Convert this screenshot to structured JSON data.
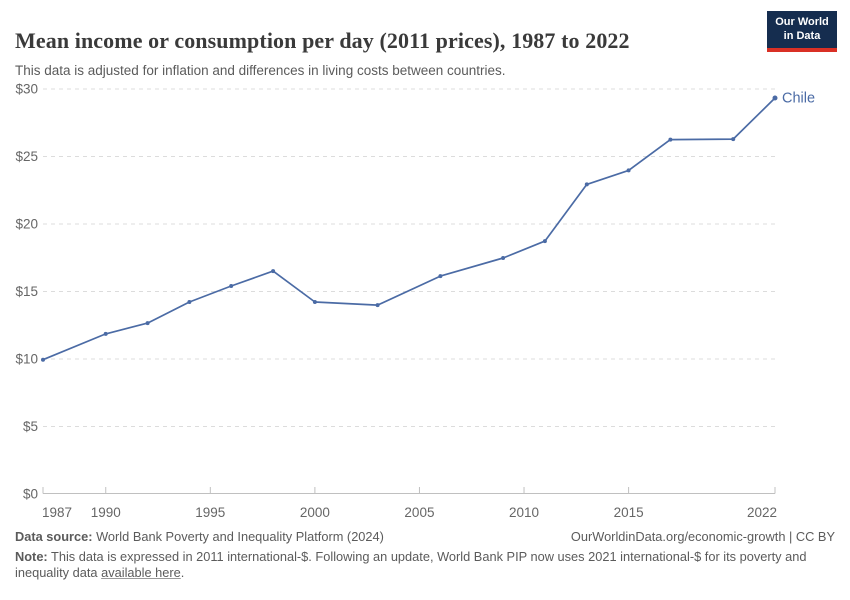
{
  "header": {
    "title": "Mean income or consumption per day (2011 prices), 1987 to 2022",
    "subtitle": "This data is adjusted for inflation and differences in living costs between countries.",
    "logo": {
      "line1": "Our World",
      "line2": "in Data"
    }
  },
  "chart_data": {
    "type": "line",
    "title": "Mean income or consumption per day (2011 prices), 1987 to 2022",
    "entity_label": "Chile",
    "x": [
      1987,
      1990,
      1992,
      1994,
      1996,
      1998,
      2000,
      2003,
      2006,
      2009,
      2011,
      2013,
      2015,
      2017,
      2020,
      2022
    ],
    "series": [
      {
        "name": "Chile",
        "values": [
          9.95,
          11.86,
          12.66,
          14.22,
          15.41,
          16.51,
          14.22,
          13.99,
          16.14,
          17.48,
          18.73,
          22.93,
          23.97,
          26.25,
          26.29,
          29.33
        ]
      }
    ],
    "xlim": [
      1987,
      2022
    ],
    "ylim": [
      0,
      30
    ],
    "xticks": [
      {
        "v": 1987,
        "label": "1987"
      },
      {
        "v": 1990,
        "label": "1990"
      },
      {
        "v": 1995,
        "label": "1995"
      },
      {
        "v": 2000,
        "label": "2000"
      },
      {
        "v": 2005,
        "label": "2005"
      },
      {
        "v": 2010,
        "label": "2010"
      },
      {
        "v": 2015,
        "label": "2015"
      },
      {
        "v": 2022,
        "label": "2022"
      }
    ],
    "yticks": [
      {
        "v": 0,
        "label": "$0"
      },
      {
        "v": 5,
        "label": "$5"
      },
      {
        "v": 10,
        "label": "$10"
      },
      {
        "v": 15,
        "label": "$15"
      },
      {
        "v": 20,
        "label": "$20"
      },
      {
        "v": 25,
        "label": "$25"
      },
      {
        "v": 30,
        "label": "$30"
      }
    ],
    "grid": "horizontal-dashed",
    "legend_position": "end-of-line",
    "colors": {
      "line": "#4b6ba5",
      "tick_label": "#666666",
      "gridline": "#dcdcdc",
      "axis": "#c0c0c0"
    }
  },
  "footer": {
    "datasource_label": "Data source:",
    "datasource_text": " World Bank Poverty and Inequality Platform (2024)",
    "attribution": "OurWorldinData.org/economic-growth | CC BY",
    "note_label": "Note:",
    "note_before_link": " This data is expressed in 2011 international-$. Following an update, World Bank PIP now uses 2021 international-$ for its poverty and inequality data ",
    "note_link": "available here",
    "note_after_link": "."
  }
}
